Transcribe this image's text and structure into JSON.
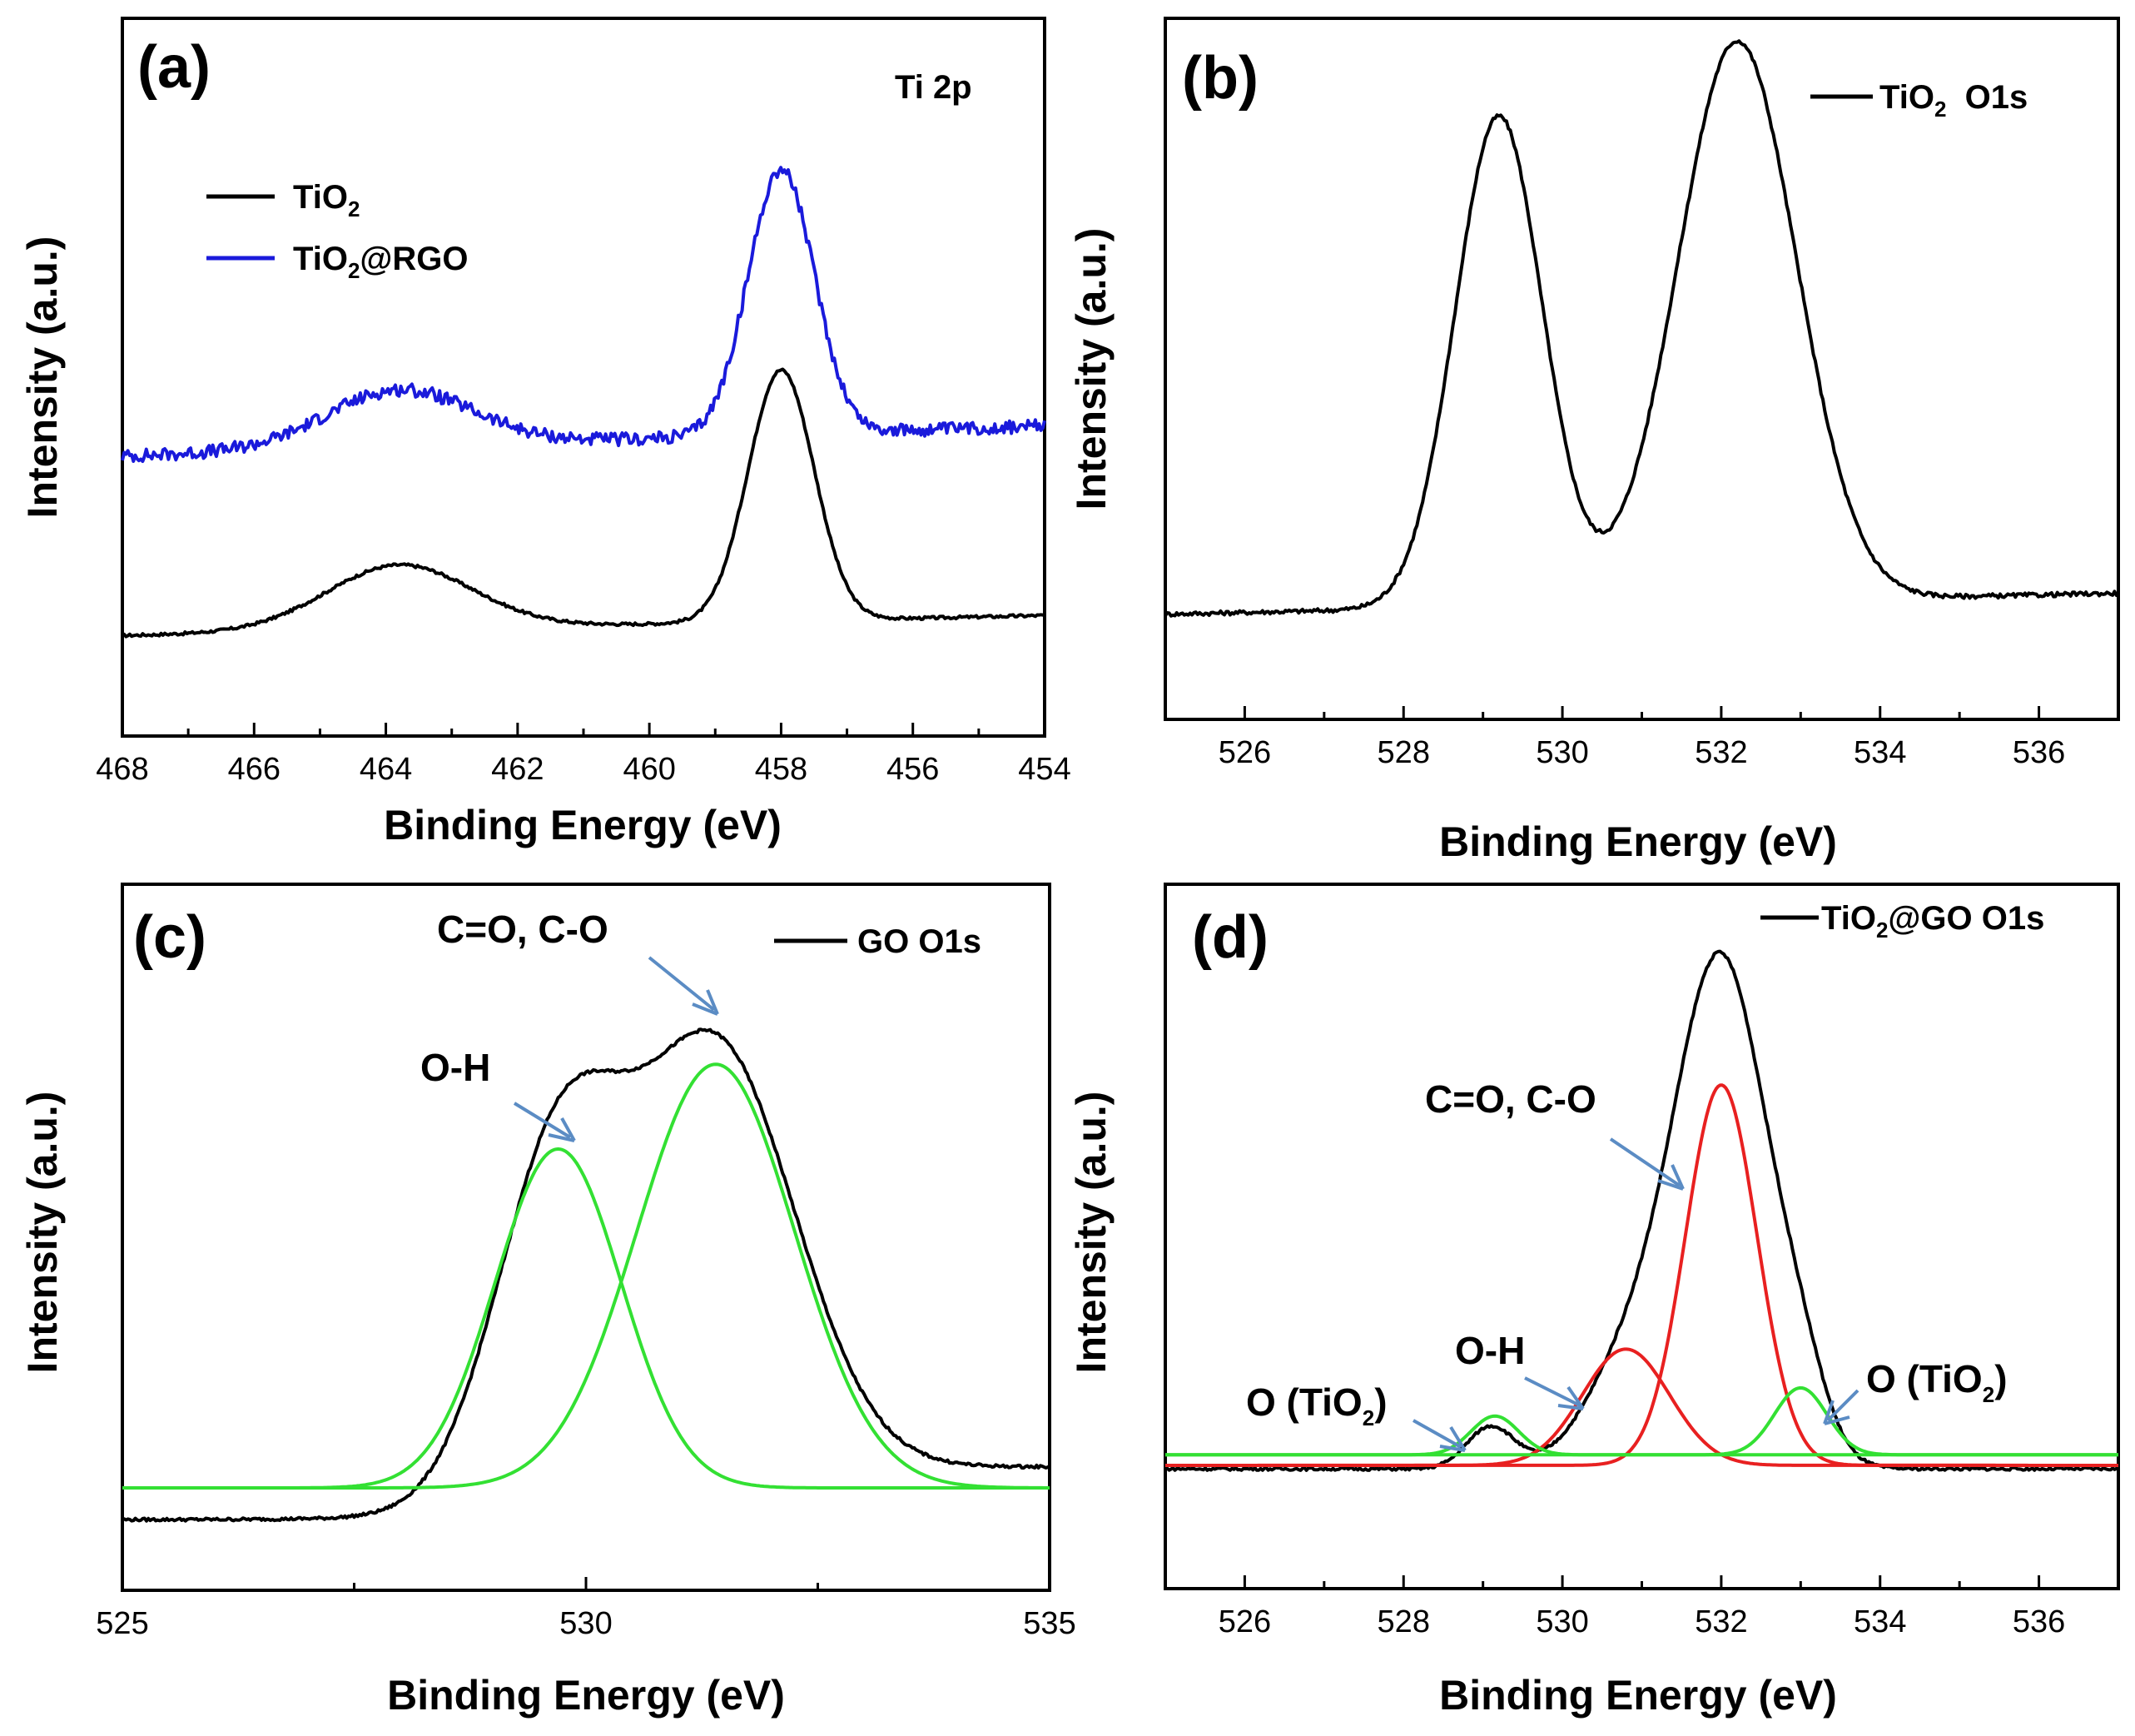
{
  "colors": {
    "black": "#000000",
    "blue": "#1a1adb",
    "green": "#33e033",
    "red": "#e82020",
    "arrow": "#5b8cc4"
  },
  "chart_data": [
    {
      "id": "a",
      "type": "line",
      "label": "(a)",
      "title": "Ti 2p",
      "xlabel": "Binding Energy (eV)",
      "ylabel": "Intensity (a.u.)",
      "xlim": [
        468,
        454
      ],
      "ylim": [
        0,
        10
      ],
      "xticks": [
        468,
        466,
        464,
        462,
        460,
        458,
        456,
        454
      ],
      "xtick_labels": [
        "468",
        "466",
        "464",
        "462",
        "460",
        "458",
        "456",
        "454"
      ],
      "legend": [
        {
          "label": "TiO",
          "sub": "2",
          "post": "",
          "color": "#000000"
        },
        {
          "label": "TiO",
          "sub": "2",
          "post": "@RGO",
          "color": "#1a1adb"
        }
      ],
      "series": [
        {
          "name": "TiO2",
          "color": "#000000",
          "baseline": 1.4,
          "slope": -0.02,
          "noise": 0.02,
          "peaks": [
            {
              "center": 463.8,
              "height": 0.9,
              "width": 1.1
            },
            {
              "center": 458.0,
              "height": 3.5,
              "width": 0.5
            }
          ]
        },
        {
          "name": "TiO2@RGO",
          "color": "#1a1adb",
          "baseline": 3.9,
          "slope": -0.03,
          "noise": 0.09,
          "peaks": [
            {
              "center": 463.8,
              "height": 0.8,
              "width": 1.1
            },
            {
              "center": 458.0,
              "height": 3.7,
              "width": 0.5
            }
          ]
        }
      ]
    },
    {
      "id": "b",
      "type": "line",
      "label": "(b)",
      "xlabel": "Binding Energy (eV)",
      "ylabel": "Intensity (a.u.)",
      "xlim": [
        525,
        537
      ],
      "ylim": [
        0,
        10
      ],
      "xticks": [
        526,
        528,
        530,
        532,
        534,
        536
      ],
      "xtick_labels": [
        "526",
        "528",
        "530",
        "532",
        "534",
        "536"
      ],
      "legend": [
        {
          "label": "TiO",
          "sub": "2",
          "post": "  O1s",
          "color": "#000000"
        }
      ],
      "series": [
        {
          "name": "TiO2 O1s",
          "color": "#000000",
          "baseline": 1.5,
          "slope": 0.025,
          "noise": 0.03,
          "peaks": [
            {
              "center": 529.2,
              "height": 7.0,
              "width": 0.55
            },
            {
              "center": 532.2,
              "height": 8.0,
              "width": 0.75
            }
          ]
        }
      ]
    },
    {
      "id": "c",
      "type": "line",
      "label": "(c)",
      "xlabel": "Binding Energy (eV)",
      "ylabel": "Intensity (a.u.)",
      "xlim": [
        525,
        535
      ],
      "ylim": [
        0,
        10
      ],
      "xticks": [
        525,
        530,
        535
      ],
      "xtick_labels": [
        "525",
        "530",
        "535"
      ],
      "legend": [
        {
          "label": "GO O1s",
          "sub": "",
          "post": "",
          "color": "#000000"
        }
      ],
      "annotations": [
        {
          "text": "C=O, C-O"
        },
        {
          "text": "O-H"
        }
      ],
      "series": [
        {
          "name": "GO O1s",
          "color": "#000000",
          "baseline": 1.0,
          "step": {
            "center": 529.8,
            "height": 0.75,
            "width": 0.7
          },
          "noise": 0.02,
          "peaks": [
            {
              "center": 529.7,
              "height": 4.8,
              "width": 0.68
            },
            {
              "center": 531.4,
              "height": 6.0,
              "width": 0.85
            }
          ]
        },
        {
          "name": "O-H component",
          "color": "#33e033",
          "baseline": 1.45,
          "noise": 0,
          "peaks": [
            {
              "center": 529.7,
              "height": 4.8,
              "width": 0.68
            }
          ]
        },
        {
          "name": "C=O, C-O component",
          "color": "#33e033",
          "baseline": 1.45,
          "noise": 0,
          "peaks": [
            {
              "center": 531.4,
              "height": 6.0,
              "width": 0.85
            }
          ]
        }
      ]
    },
    {
      "id": "d",
      "type": "line",
      "label": "(d)",
      "xlabel": "Binding Energy (eV)",
      "ylabel": "Intensity (a.u.)",
      "xlim": [
        525,
        537
      ],
      "ylim": [
        0,
        10
      ],
      "xticks": [
        526,
        528,
        530,
        532,
        534,
        536
      ],
      "xtick_labels": [
        "526",
        "528",
        "530",
        "532",
        "534",
        "536"
      ],
      "legend": [
        {
          "label": "TiO",
          "sub": "2",
          "post": "@GO O1s",
          "color": "#000000"
        }
      ],
      "annotations": [
        {
          "text": "C=O, C-O"
        },
        {
          "text": "O-H"
        },
        {
          "pre": "O (TiO",
          "sub": "2",
          "post": ")"
        },
        {
          "pre": "O (TiO",
          "sub": "2",
          "post": ")"
        }
      ],
      "series": [
        {
          "name": "TiO2@GO O1s",
          "color": "#000000",
          "baseline": 1.7,
          "slope": 0,
          "noise": 0.02,
          "peaks": [
            {
              "center": 532.0,
              "height": 7.2,
              "width": 0.6
            },
            {
              "center": 530.8,
              "height": 1.3,
              "width": 0.55
            },
            {
              "center": 529.1,
              "height": 0.6,
              "width": 0.3
            },
            {
              "center": 533.0,
              "height": 0.8,
              "width": 0.33
            }
          ]
        },
        {
          "name": "C=O, C-O",
          "color": "#e82020",
          "baseline": 1.75,
          "noise": 0,
          "peaks": [
            {
              "center": 532.0,
              "height": 5.4,
              "width": 0.45
            }
          ]
        },
        {
          "name": "O-H",
          "color": "#e82020",
          "baseline": 1.75,
          "noise": 0,
          "peaks": [
            {
              "center": 530.8,
              "height": 1.65,
              "width": 0.55
            }
          ]
        },
        {
          "name": "O (TiO2) low",
          "color": "#33e033",
          "baseline": 1.9,
          "noise": 0,
          "peaks": [
            {
              "center": 529.15,
              "height": 0.55,
              "width": 0.3
            }
          ]
        },
        {
          "name": "O (TiO2) high",
          "color": "#33e033",
          "baseline": 1.9,
          "noise": 0,
          "peaks": [
            {
              "center": 533.0,
              "height": 0.95,
              "width": 0.33
            }
          ]
        }
      ]
    }
  ]
}
